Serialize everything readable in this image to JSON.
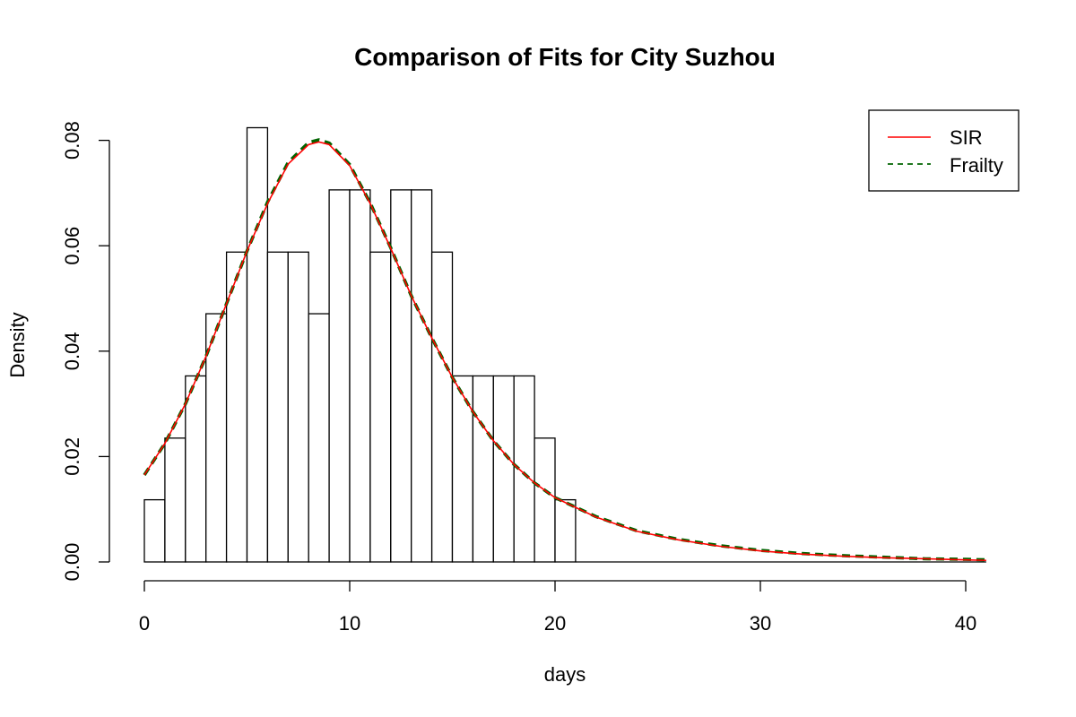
{
  "chart_data": {
    "type": "bar",
    "title": "Comparison of Fits for City Suzhou",
    "xlabel": "days",
    "ylabel": "Density",
    "xlim": [
      0,
      41
    ],
    "ylim": [
      0,
      0.08
    ],
    "x_ticks": [
      0,
      10,
      20,
      30,
      40
    ],
    "y_ticks": [
      "0.00",
      "0.02",
      "0.04",
      "0.06",
      "0.08"
    ],
    "grid": false,
    "legend_position": "top-right",
    "histogram": {
      "bin_width": 1,
      "bins": [
        {
          "x0": 0,
          "x1": 1,
          "density": 0.0118
        },
        {
          "x0": 1,
          "x1": 2,
          "density": 0.0235
        },
        {
          "x0": 2,
          "x1": 3,
          "density": 0.0353
        },
        {
          "x0": 3,
          "x1": 4,
          "density": 0.0471
        },
        {
          "x0": 4,
          "x1": 5,
          "density": 0.0588
        },
        {
          "x0": 5,
          "x1": 6,
          "density": 0.0824
        },
        {
          "x0": 6,
          "x1": 7,
          "density": 0.0588
        },
        {
          "x0": 7,
          "x1": 8,
          "density": 0.0588
        },
        {
          "x0": 8,
          "x1": 9,
          "density": 0.0471
        },
        {
          "x0": 9,
          "x1": 10,
          "density": 0.0706
        },
        {
          "x0": 10,
          "x1": 11,
          "density": 0.0706
        },
        {
          "x0": 11,
          "x1": 12,
          "density": 0.0588
        },
        {
          "x0": 12,
          "x1": 13,
          "density": 0.0706
        },
        {
          "x0": 13,
          "x1": 14,
          "density": 0.0706
        },
        {
          "x0": 14,
          "x1": 15,
          "density": 0.0588
        },
        {
          "x0": 15,
          "x1": 16,
          "density": 0.0353
        },
        {
          "x0": 16,
          "x1": 17,
          "density": 0.0353
        },
        {
          "x0": 17,
          "x1": 18,
          "density": 0.0353
        },
        {
          "x0": 18,
          "x1": 19,
          "density": 0.0353
        },
        {
          "x0": 19,
          "x1": 20,
          "density": 0.0235
        },
        {
          "x0": 20,
          "x1": 21,
          "density": 0.0118
        }
      ]
    },
    "series": [
      {
        "name": "SIR",
        "type": "line",
        "color": "#ff0000",
        "dash": "solid",
        "x": [
          0,
          1,
          2,
          3,
          4,
          5,
          6,
          7,
          8,
          8.5,
          9,
          10,
          11,
          12,
          13,
          14,
          15,
          16,
          17,
          18,
          19,
          20,
          22,
          24,
          26,
          28,
          30,
          32,
          34,
          36,
          38,
          40,
          41
        ],
        "y": [
          0.0165,
          0.0225,
          0.03,
          0.039,
          0.049,
          0.059,
          0.068,
          0.0755,
          0.0792,
          0.0797,
          0.0792,
          0.0752,
          0.068,
          0.0595,
          0.0505,
          0.0425,
          0.035,
          0.0285,
          0.023,
          0.0185,
          0.015,
          0.0122,
          0.0085,
          0.0058,
          0.0042,
          0.003,
          0.0021,
          0.0015,
          0.0011,
          0.0008,
          0.0006,
          0.0004,
          0.0003
        ]
      },
      {
        "name": "Frailty",
        "type": "line",
        "color": "#006400",
        "dash": "dashed",
        "x": [
          0,
          1,
          2,
          3,
          4,
          5,
          6,
          7,
          8,
          8.5,
          9,
          10,
          11,
          12,
          13,
          14,
          15,
          16,
          17,
          18,
          19,
          20,
          22,
          24,
          26,
          28,
          30,
          32,
          34,
          36,
          38,
          40,
          41
        ],
        "y": [
          0.0165,
          0.0225,
          0.03,
          0.039,
          0.049,
          0.059,
          0.0683,
          0.0758,
          0.0796,
          0.0801,
          0.0795,
          0.0754,
          0.0681,
          0.0596,
          0.0505,
          0.0425,
          0.035,
          0.0285,
          0.023,
          0.0185,
          0.015,
          0.0122,
          0.0086,
          0.0059,
          0.0043,
          0.0031,
          0.0022,
          0.0016,
          0.0012,
          0.0009,
          0.0006,
          0.0005,
          0.0004
        ]
      }
    ]
  }
}
